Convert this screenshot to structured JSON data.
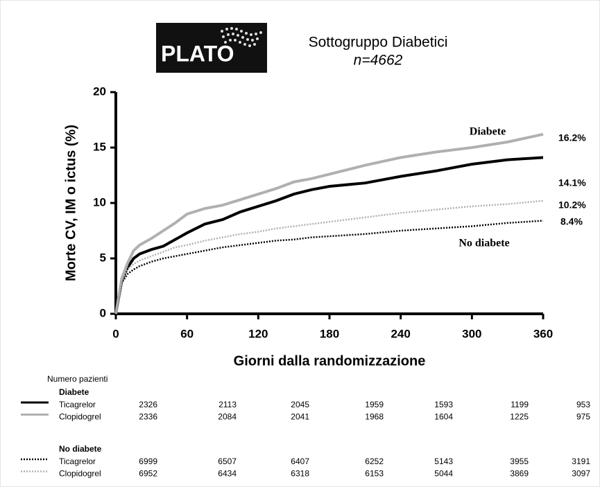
{
  "chart_data": {
    "type": "line",
    "logo": "PLATO",
    "title": "Sottogruppo Diabetici",
    "subtitle": "n=4662",
    "xlabel": "Giorni dalla randomizzazione",
    "ylabel": "Morte CV, IM o ictus (%)",
    "xlim": [
      0,
      360
    ],
    "ylim": [
      0,
      20
    ],
    "xticks": [
      0,
      60,
      120,
      180,
      240,
      300,
      360
    ],
    "yticks": [
      0,
      5,
      10,
      15,
      20
    ],
    "x": [
      0,
      5,
      10,
      15,
      20,
      30,
      40,
      50,
      60,
      75,
      90,
      105,
      120,
      135,
      150,
      165,
      180,
      210,
      240,
      270,
      300,
      330,
      360
    ],
    "series": [
      {
        "name": "Ticagrelor",
        "color": "#000000",
        "style": "solid",
        "end_label": "14.1%",
        "values": [
          0,
          3.0,
          4.2,
          5.0,
          5.4,
          5.8,
          6.1,
          6.7,
          7.3,
          8.1,
          8.5,
          9.2,
          9.7,
          10.2,
          10.8,
          11.2,
          11.5,
          11.8,
          12.4,
          12.9,
          13.5,
          13.9,
          14.1
        ]
      },
      {
        "name": "Clopidogrel",
        "color": "#b0b0b0",
        "style": "solid",
        "end_label": "16.2%",
        "values": [
          0,
          3.2,
          4.6,
          5.7,
          6.2,
          6.8,
          7.5,
          8.2,
          9.0,
          9.5,
          9.8,
          10.3,
          10.8,
          11.3,
          11.9,
          12.2,
          12.6,
          13.4,
          14.1,
          14.6,
          15.0,
          15.5,
          16.2
        ]
      },
      {
        "name": "Ticagrelor",
        "color": "#000000",
        "style": "dotted",
        "end_label": "8.4%",
        "values": [
          0,
          2.8,
          3.6,
          4.0,
          4.3,
          4.7,
          5.0,
          5.2,
          5.4,
          5.7,
          6.0,
          6.2,
          6.4,
          6.6,
          6.7,
          6.9,
          7.0,
          7.2,
          7.5,
          7.7,
          7.9,
          8.2,
          8.4
        ]
      },
      {
        "name": "Clopidogrel",
        "color": "#b0b0b0",
        "style": "dotted",
        "end_label": "10.2%",
        "values": [
          0,
          3.0,
          4.0,
          4.5,
          4.8,
          5.2,
          5.6,
          6.0,
          6.2,
          6.6,
          6.9,
          7.2,
          7.4,
          7.7,
          7.9,
          8.1,
          8.3,
          8.7,
          9.1,
          9.4,
          9.7,
          9.9,
          10.2
        ]
      }
    ],
    "annotations": [
      "Diabete",
      "No diabete"
    ],
    "risk_table": {
      "title": "Numero pazienti",
      "groups": [
        {
          "name": "Diabete",
          "rows": [
            {
              "name": "Ticagrelor",
              "color": "#000000",
              "style": "solid",
              "values": [
                2326,
                2113,
                2045,
                1959,
                1593,
                1199,
                953
              ]
            },
            {
              "name": "Clopidogrel",
              "color": "#b0b0b0",
              "style": "solid",
              "values": [
                2336,
                2084,
                2041,
                1968,
                1604,
                1225,
                975
              ]
            }
          ]
        },
        {
          "name": "No diabete",
          "rows": [
            {
              "name": "Ticagrelor",
              "color": "#000000",
              "style": "dotted",
              "values": [
                6999,
                6507,
                6407,
                6252,
                5143,
                3955,
                3191
              ]
            },
            {
              "name": "Clopidogrel",
              "color": "#b0b0b0",
              "style": "dotted",
              "values": [
                6952,
                6434,
                6318,
                6153,
                5044,
                3869,
                3097
              ]
            }
          ]
        }
      ]
    }
  }
}
